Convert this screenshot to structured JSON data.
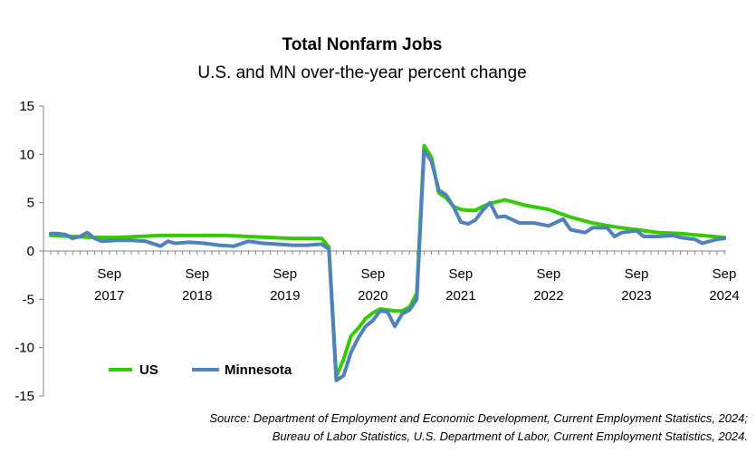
{
  "chart_data": {
    "type": "line",
    "title": "Total Nonfarm Jobs",
    "subtitle": "U.S. and MN over-the-year percent change",
    "ylim": [
      -15,
      15
    ],
    "yticks": [
      15,
      10,
      5,
      0,
      -5,
      -10,
      -15
    ],
    "x_range": [
      "2017-01",
      "2024-09"
    ],
    "x_tick_labels": [
      {
        "month": "Sep",
        "year": "2017",
        "date": "2017-09"
      },
      {
        "month": "Sep",
        "year": "2018",
        "date": "2018-09"
      },
      {
        "month": "Sep",
        "year": "2019",
        "date": "2019-09"
      },
      {
        "month": "Sep",
        "year": "2020",
        "date": "2020-09"
      },
      {
        "month": "Sep",
        "year": "2021",
        "date": "2021-09"
      },
      {
        "month": "Sep",
        "year": "2022",
        "date": "2022-09"
      },
      {
        "month": "Sep",
        "year": "2023",
        "date": "2023-09"
      },
      {
        "month": "Sep",
        "year": "2024",
        "date": "2024-09"
      }
    ],
    "grid": false,
    "legend": {
      "position": "lower-left"
    },
    "series": [
      {
        "name": "US",
        "color": "#33CC00",
        "points": [
          [
            "2017-01",
            1.6
          ],
          [
            "2017-04",
            1.5
          ],
          [
            "2017-07",
            1.4
          ],
          [
            "2017-10",
            1.4
          ],
          [
            "2018-01",
            1.5
          ],
          [
            "2018-04",
            1.6
          ],
          [
            "2018-07",
            1.6
          ],
          [
            "2018-10",
            1.6
          ],
          [
            "2019-01",
            1.6
          ],
          [
            "2019-04",
            1.5
          ],
          [
            "2019-07",
            1.4
          ],
          [
            "2019-10",
            1.3
          ],
          [
            "2020-01",
            1.3
          ],
          [
            "2020-02",
            1.3
          ],
          [
            "2020-03",
            0.4
          ],
          [
            "2020-04",
            -13.0
          ],
          [
            "2020-05",
            -11.2
          ],
          [
            "2020-06",
            -8.8
          ],
          [
            "2020-07",
            -8.0
          ],
          [
            "2020-08",
            -7.0
          ],
          [
            "2020-09",
            -6.4
          ],
          [
            "2020-10",
            -6.0
          ],
          [
            "2020-11",
            -6.1
          ],
          [
            "2020-12",
            -6.2
          ],
          [
            "2021-01",
            -6.2
          ],
          [
            "2021-02",
            -5.8
          ],
          [
            "2021-03",
            -4.4
          ],
          [
            "2021-04",
            10.9
          ],
          [
            "2021-05",
            9.7
          ],
          [
            "2021-06",
            6.0
          ],
          [
            "2021-07",
            5.5
          ],
          [
            "2021-08",
            4.6
          ],
          [
            "2021-09",
            4.3
          ],
          [
            "2021-10",
            4.2
          ],
          [
            "2021-11",
            4.2
          ],
          [
            "2021-12",
            4.6
          ],
          [
            "2022-01",
            4.9
          ],
          [
            "2022-02",
            5.1
          ],
          [
            "2022-03",
            5.3
          ],
          [
            "2022-04",
            5.1
          ],
          [
            "2022-06",
            4.7
          ],
          [
            "2022-09",
            4.3
          ],
          [
            "2022-12",
            3.5
          ],
          [
            "2023-03",
            2.9
          ],
          [
            "2023-06",
            2.5
          ],
          [
            "2023-09",
            2.2
          ],
          [
            "2023-12",
            1.9
          ],
          [
            "2024-03",
            1.8
          ],
          [
            "2024-06",
            1.6
          ],
          [
            "2024-09",
            1.4
          ]
        ]
      },
      {
        "name": "Minnesota",
        "color": "#4F81BD",
        "points": [
          [
            "2017-01",
            1.8
          ],
          [
            "2017-02",
            1.8
          ],
          [
            "2017-03",
            1.7
          ],
          [
            "2017-04",
            1.3
          ],
          [
            "2017-05",
            1.5
          ],
          [
            "2017-06",
            1.9
          ],
          [
            "2017-07",
            1.3
          ],
          [
            "2017-08",
            1.0
          ],
          [
            "2017-10",
            1.1
          ],
          [
            "2017-12",
            1.1
          ],
          [
            "2018-02",
            1.0
          ],
          [
            "2018-04",
            0.5
          ],
          [
            "2018-05",
            1.0
          ],
          [
            "2018-06",
            0.8
          ],
          [
            "2018-08",
            0.9
          ],
          [
            "2018-10",
            0.8
          ],
          [
            "2018-12",
            0.6
          ],
          [
            "2019-02",
            0.5
          ],
          [
            "2019-04",
            1.0
          ],
          [
            "2019-06",
            0.8
          ],
          [
            "2019-08",
            0.7
          ],
          [
            "2019-10",
            0.6
          ],
          [
            "2019-12",
            0.6
          ],
          [
            "2020-02",
            0.7
          ],
          [
            "2020-03",
            0.2
          ],
          [
            "2020-04",
            -13.4
          ],
          [
            "2020-05",
            -12.9
          ],
          [
            "2020-06",
            -10.5
          ],
          [
            "2020-07",
            -9.0
          ],
          [
            "2020-08",
            -7.8
          ],
          [
            "2020-09",
            -7.2
          ],
          [
            "2020-10",
            -6.2
          ],
          [
            "2020-11",
            -6.3
          ],
          [
            "2020-12",
            -7.8
          ],
          [
            "2021-01",
            -6.5
          ],
          [
            "2021-02",
            -6.1
          ],
          [
            "2021-03",
            -5.0
          ],
          [
            "2021-04",
            10.4
          ],
          [
            "2021-05",
            9.3
          ],
          [
            "2021-06",
            6.3
          ],
          [
            "2021-07",
            5.8
          ],
          [
            "2021-08",
            4.6
          ],
          [
            "2021-09",
            3.0
          ],
          [
            "2021-10",
            2.8
          ],
          [
            "2021-11",
            3.2
          ],
          [
            "2021-12",
            4.2
          ],
          [
            "2022-01",
            5.0
          ],
          [
            "2022-02",
            3.5
          ],
          [
            "2022-03",
            3.6
          ],
          [
            "2022-05",
            2.9
          ],
          [
            "2022-07",
            2.9
          ],
          [
            "2022-09",
            2.6
          ],
          [
            "2022-11",
            3.3
          ],
          [
            "2022-12",
            2.2
          ],
          [
            "2023-02",
            1.9
          ],
          [
            "2023-03",
            2.4
          ],
          [
            "2023-05",
            2.4
          ],
          [
            "2023-06",
            1.5
          ],
          [
            "2023-07",
            1.9
          ],
          [
            "2023-09",
            2.1
          ],
          [
            "2023-10",
            1.5
          ],
          [
            "2023-12",
            1.5
          ],
          [
            "2024-02",
            1.6
          ],
          [
            "2024-03",
            1.4
          ],
          [
            "2024-05",
            1.2
          ],
          [
            "2024-06",
            0.8
          ],
          [
            "2024-08",
            1.2
          ],
          [
            "2024-09",
            1.3
          ]
        ]
      }
    ]
  },
  "source_lines": [
    "Source: Department of Employment and Economic Development, Current Employment Statistics, 2024;",
    "Bureau of Labor Statistics, U.S. Department of Labor, Current Employment Statistics, 2024."
  ]
}
